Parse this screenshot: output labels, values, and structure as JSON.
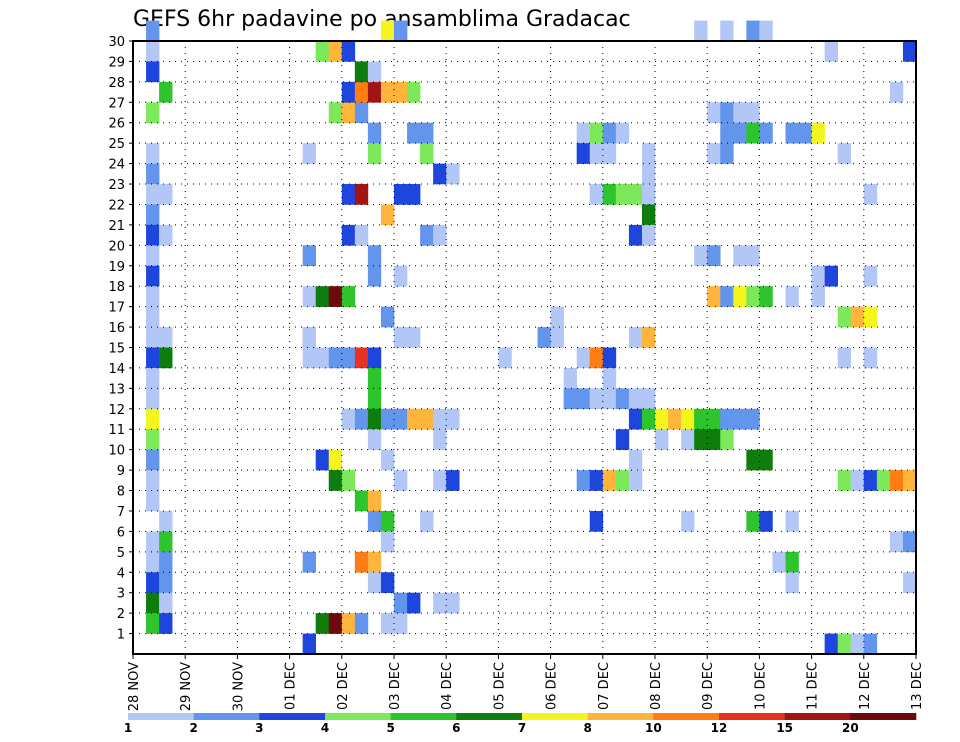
{
  "chart_data": {
    "type": "heatmap",
    "title": "GEFS 6hr padavine po ansamblima Gradacac",
    "x_ticks": [
      "28 NOV",
      "29 NOV",
      "30 NOV",
      "01 DEC",
      "02 DEC",
      "03 DEC",
      "04 DEC",
      "05 DEC",
      "06 DEC",
      "07 DEC",
      "08 DEC",
      "09 DEC",
      "10 DEC",
      "11 DEC",
      "12 DEC",
      "13 DEC"
    ],
    "y_ticks": [
      1,
      2,
      3,
      4,
      5,
      6,
      7,
      8,
      9,
      10,
      11,
      12,
      13,
      14,
      15,
      16,
      17,
      18,
      19,
      20,
      21,
      22,
      23,
      24,
      25,
      26,
      27,
      28,
      29,
      30
    ],
    "x_step_hours": 6,
    "n_steps": 60,
    "y_range": [
      0,
      30
    ],
    "grid": true,
    "colorbar": {
      "labels": [
        "1",
        "2",
        "3",
        "4",
        "5",
        "6",
        "7",
        "8",
        "10",
        "12",
        "15",
        "20"
      ],
      "colors": [
        "#b3c7f7",
        "#6495ed",
        "#1e46dc",
        "#7ce85a",
        "#2dc42d",
        "#0e7d0e",
        "#f5f51e",
        "#ffb43c",
        "#ff7d14",
        "#e6321e",
        "#a01414",
        "#6e0a0a"
      ]
    },
    "cells": [
      [
        1,
        30,
        1
      ],
      [
        1,
        29,
        0
      ],
      [
        1,
        28,
        2
      ],
      [
        2,
        27,
        4
      ],
      [
        1,
        26,
        3
      ],
      [
        1,
        24,
        0
      ],
      [
        1,
        23,
        1
      ],
      [
        1,
        22,
        0
      ],
      [
        2,
        22,
        0
      ],
      [
        1,
        21,
        1
      ],
      [
        1,
        20,
        2
      ],
      [
        2,
        20,
        0
      ],
      [
        1,
        19,
        0
      ],
      [
        1,
        18,
        2
      ],
      [
        1,
        17,
        0
      ],
      [
        1,
        16,
        0
      ],
      [
        1,
        15,
        0
      ],
      [
        2,
        15,
        0
      ],
      [
        1,
        14,
        2
      ],
      [
        2,
        14,
        5
      ],
      [
        1,
        13,
        0
      ],
      [
        1,
        12,
        0
      ],
      [
        1,
        11,
        6
      ],
      [
        1,
        10,
        3
      ],
      [
        1,
        9,
        1
      ],
      [
        1,
        8,
        0
      ],
      [
        1,
        7,
        0
      ],
      [
        2,
        6,
        0
      ],
      [
        1,
        5,
        0
      ],
      [
        2,
        5,
        4
      ],
      [
        1,
        4,
        0
      ],
      [
        2,
        4,
        1
      ],
      [
        1,
        3,
        2
      ],
      [
        2,
        3,
        1
      ],
      [
        1,
        2,
        5
      ],
      [
        2,
        2,
        0
      ],
      [
        1,
        1,
        4
      ],
      [
        2,
        1,
        2
      ],
      [
        13,
        24,
        0
      ],
      [
        13,
        19,
        1
      ],
      [
        13,
        15,
        0
      ],
      [
        13,
        14,
        0
      ],
      [
        14,
        29,
        3
      ],
      [
        15,
        29,
        7
      ],
      [
        16,
        29,
        2
      ],
      [
        15,
        26,
        3
      ],
      [
        16,
        26,
        7
      ],
      [
        17,
        26,
        1
      ],
      [
        16,
        27,
        2
      ],
      [
        17,
        27,
        8
      ],
      [
        18,
        27,
        10
      ],
      [
        19,
        27,
        7
      ],
      [
        20,
        27,
        7
      ],
      [
        21,
        27,
        3
      ],
      [
        17,
        28,
        5
      ],
      [
        18,
        28,
        0
      ],
      [
        19,
        30,
        6
      ],
      [
        20,
        30,
        1
      ],
      [
        18,
        25,
        1
      ],
      [
        21,
        25,
        1
      ],
      [
        22,
        25,
        1
      ],
      [
        18,
        24,
        3
      ],
      [
        22,
        24,
        3
      ],
      [
        23,
        23,
        2
      ],
      [
        24,
        23,
        0
      ],
      [
        16,
        22,
        2
      ],
      [
        17,
        22,
        10
      ],
      [
        20,
        22,
        2
      ],
      [
        21,
        22,
        2
      ],
      [
        19,
        21,
        7
      ],
      [
        16,
        20,
        2
      ],
      [
        17,
        20,
        0
      ],
      [
        22,
        20,
        1
      ],
      [
        23,
        20,
        0
      ],
      [
        18,
        19,
        1
      ],
      [
        18,
        18,
        1
      ],
      [
        20,
        18,
        0
      ],
      [
        13,
        17,
        0
      ],
      [
        14,
        17,
        5
      ],
      [
        15,
        17,
        11
      ],
      [
        16,
        17,
        4
      ],
      [
        19,
        16,
        1
      ],
      [
        13,
        15,
        0
      ],
      [
        20,
        15,
        0
      ],
      [
        21,
        15,
        0
      ],
      [
        14,
        14,
        0
      ],
      [
        15,
        14,
        1
      ],
      [
        16,
        14,
        1
      ],
      [
        17,
        14,
        9
      ],
      [
        18,
        14,
        2
      ],
      [
        18,
        13,
        4
      ],
      [
        18,
        12,
        4
      ],
      [
        16,
        11,
        0
      ],
      [
        17,
        11,
        1
      ],
      [
        18,
        11,
        5
      ],
      [
        19,
        11,
        1
      ],
      [
        20,
        11,
        1
      ],
      [
        21,
        11,
        7
      ],
      [
        22,
        11,
        7
      ],
      [
        23,
        11,
        0
      ],
      [
        24,
        11,
        0
      ],
      [
        18,
        10,
        0
      ],
      [
        23,
        10,
        0
      ],
      [
        14,
        9,
        2
      ],
      [
        15,
        9,
        6
      ],
      [
        19,
        9,
        0
      ],
      [
        15,
        8,
        5
      ],
      [
        16,
        8,
        3
      ],
      [
        20,
        8,
        0
      ],
      [
        23,
        8,
        0
      ],
      [
        24,
        8,
        2
      ],
      [
        17,
        7,
        4
      ],
      [
        18,
        7,
        7
      ],
      [
        18,
        6,
        1
      ],
      [
        19,
        6,
        4
      ],
      [
        22,
        6,
        0
      ],
      [
        19,
        5,
        0
      ],
      [
        13,
        4,
        1
      ],
      [
        17,
        4,
        8
      ],
      [
        18,
        4,
        7
      ],
      [
        18,
        3,
        0
      ],
      [
        19,
        3,
        2
      ],
      [
        20,
        2,
        1
      ],
      [
        21,
        2,
        2
      ],
      [
        23,
        2,
        0
      ],
      [
        24,
        2,
        0
      ],
      [
        14,
        1,
        5
      ],
      [
        15,
        1,
        11
      ],
      [
        16,
        1,
        7
      ],
      [
        17,
        1,
        1
      ],
      [
        19,
        1,
        0
      ],
      [
        20,
        1,
        0
      ],
      [
        13,
        0,
        2
      ],
      [
        28,
        14,
        0
      ],
      [
        32,
        16,
        0
      ],
      [
        33,
        13,
        0
      ],
      [
        33,
        12,
        1
      ],
      [
        34,
        12,
        1
      ],
      [
        35,
        12,
        0
      ],
      [
        36,
        12,
        0
      ],
      [
        31,
        15,
        1
      ],
      [
        32,
        15,
        0
      ],
      [
        34,
        25,
        0
      ],
      [
        35,
        25,
        3
      ],
      [
        36,
        25,
        1
      ],
      [
        37,
        25,
        0
      ],
      [
        34,
        24,
        2
      ],
      [
        35,
        24,
        0
      ],
      [
        36,
        24,
        0
      ],
      [
        35,
        22,
        0
      ],
      [
        36,
        22,
        4
      ],
      [
        37,
        22,
        3
      ],
      [
        38,
        22,
        3
      ],
      [
        39,
        22,
        0
      ],
      [
        34,
        14,
        0
      ],
      [
        35,
        14,
        8
      ],
      [
        36,
        14,
        2
      ],
      [
        36,
        13,
        0
      ],
      [
        37,
        12,
        1
      ],
      [
        38,
        12,
        0
      ],
      [
        39,
        12,
        0
      ],
      [
        38,
        11,
        2
      ],
      [
        39,
        11,
        4
      ],
      [
        40,
        11,
        6
      ],
      [
        41,
        11,
        7
      ],
      [
        42,
        11,
        6
      ],
      [
        43,
        11,
        4
      ],
      [
        44,
        11,
        4
      ],
      [
        45,
        11,
        1
      ],
      [
        46,
        11,
        1
      ],
      [
        47,
        11,
        1
      ],
      [
        37,
        10,
        2
      ],
      [
        40,
        10,
        0
      ],
      [
        42,
        10,
        0
      ],
      [
        43,
        10,
        5
      ],
      [
        44,
        10,
        5
      ],
      [
        45,
        10,
        3
      ],
      [
        38,
        9,
        0
      ],
      [
        47,
        9,
        5
      ],
      [
        48,
        9,
        5
      ],
      [
        34,
        8,
        1
      ],
      [
        35,
        8,
        2
      ],
      [
        36,
        8,
        7
      ],
      [
        37,
        8,
        3
      ],
      [
        38,
        8,
        0
      ],
      [
        35,
        6,
        2
      ],
      [
        39,
        21,
        5
      ],
      [
        38,
        20,
        2
      ],
      [
        39,
        20,
        0
      ],
      [
        38,
        15,
        0
      ],
      [
        39,
        15,
        7
      ],
      [
        39,
        23,
        0
      ],
      [
        39,
        24,
        0
      ],
      [
        44,
        26,
        0
      ],
      [
        45,
        26,
        1
      ],
      [
        46,
        26,
        0
      ],
      [
        47,
        26,
        0
      ],
      [
        45,
        25,
        1
      ],
      [
        46,
        25,
        1
      ],
      [
        47,
        25,
        4
      ],
      [
        48,
        25,
        1
      ],
      [
        50,
        25,
        1
      ],
      [
        51,
        25,
        1
      ],
      [
        52,
        25,
        6
      ],
      [
        44,
        24,
        0
      ],
      [
        45,
        24,
        1
      ],
      [
        54,
        24,
        0
      ],
      [
        43,
        19,
        0
      ],
      [
        44,
        19,
        1
      ],
      [
        46,
        19,
        0
      ],
      [
        47,
        19,
        0
      ],
      [
        52,
        18,
        0
      ],
      [
        53,
        18,
        2
      ],
      [
        56,
        18,
        0
      ],
      [
        44,
        17,
        7
      ],
      [
        45,
        17,
        1
      ],
      [
        46,
        17,
        6
      ],
      [
        47,
        17,
        3
      ],
      [
        48,
        17,
        4
      ],
      [
        50,
        17,
        0
      ],
      [
        52,
        17,
        0
      ],
      [
        54,
        16,
        3
      ],
      [
        55,
        16,
        7
      ],
      [
        56,
        16,
        6
      ],
      [
        54,
        14,
        0
      ],
      [
        56,
        14,
        0
      ],
      [
        42,
        6,
        0
      ],
      [
        47,
        6,
        4
      ],
      [
        48,
        6,
        2
      ],
      [
        50,
        6,
        0
      ],
      [
        49,
        4,
        0
      ],
      [
        50,
        4,
        4
      ],
      [
        50,
        3,
        0
      ],
      [
        54,
        8,
        3
      ],
      [
        55,
        8,
        0
      ],
      [
        56,
        8,
        2
      ],
      [
        57,
        8,
        3
      ],
      [
        58,
        8,
        8
      ],
      [
        59,
        8,
        7
      ],
      [
        53,
        0,
        2
      ],
      [
        54,
        0,
        3
      ],
      [
        55,
        0,
        0
      ],
      [
        56,
        0,
        1
      ],
      [
        53,
        29,
        0
      ],
      [
        43,
        30,
        0
      ],
      [
        45,
        30,
        0
      ],
      [
        47,
        30,
        1
      ],
      [
        48,
        30,
        0
      ],
      [
        58,
        27,
        0
      ],
      [
        59,
        29,
        2
      ],
      [
        59,
        3,
        0
      ],
      [
        56,
        22,
        0
      ],
      [
        58,
        5,
        0
      ],
      [
        59,
        5,
        1
      ]
    ]
  }
}
